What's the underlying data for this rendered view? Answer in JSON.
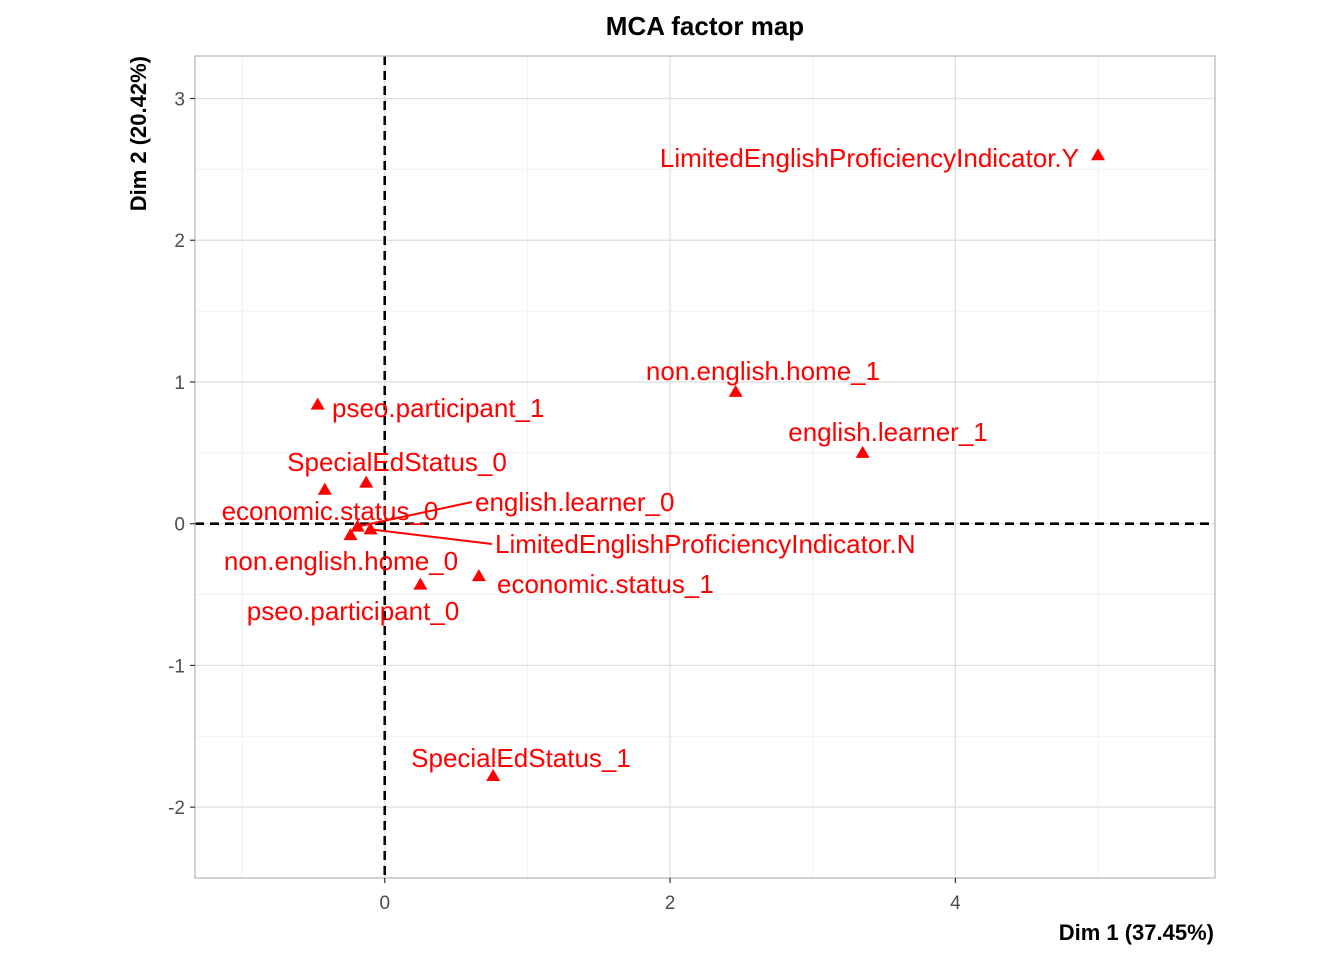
{
  "chart_data": {
    "type": "scatter",
    "title": "MCA factor map",
    "xlabel": "Dim 1 (37.45%)",
    "ylabel": "Dim 2 (20.42%)",
    "xlim": [
      -1.33,
      5.82
    ],
    "ylim": [
      -2.5,
      3.3
    ],
    "x_ticks": [
      0,
      2,
      4
    ],
    "y_ticks": [
      -2,
      -1,
      0,
      1,
      2,
      3
    ],
    "x_tick_labels": [
      "0",
      "2",
      "4"
    ],
    "y_tick_labels": [
      "-2",
      "-1",
      "0",
      "1",
      "2",
      "3"
    ],
    "grid": true,
    "reference_lines": {
      "x": 0,
      "y": 0,
      "style": "dashed"
    },
    "marker": "triangle",
    "color": "#ff0000",
    "points": [
      {
        "label": "LimitedEnglishProficiencyIndicator.Y",
        "x": 5.0,
        "y": 2.6
      },
      {
        "label": "non.english.home_1",
        "x": 2.46,
        "y": 0.93
      },
      {
        "label": "english.learner_1",
        "x": 3.35,
        "y": 0.5
      },
      {
        "label": "pseo.participant_1",
        "x": -0.47,
        "y": 0.84
      },
      {
        "label": "SpecialEdStatus_0",
        "x": -0.13,
        "y": 0.29
      },
      {
        "label": "economic.status_0",
        "x": -0.42,
        "y": 0.24
      },
      {
        "label": "english.learner_0",
        "x": -0.19,
        "y": -0.02
      },
      {
        "label": "LimitedEnglishProficiencyIndicator.N",
        "x": -0.1,
        "y": -0.04
      },
      {
        "label": "non.english.home_0",
        "x": -0.24,
        "y": -0.08
      },
      {
        "label": "economic.status_1",
        "x": 0.66,
        "y": -0.37
      },
      {
        "label": "pseo.participant_0",
        "x": 0.25,
        "y": -0.43
      },
      {
        "label": "SpecialEdStatus_1",
        "x": 0.76,
        "y": -1.78
      }
    ]
  }
}
